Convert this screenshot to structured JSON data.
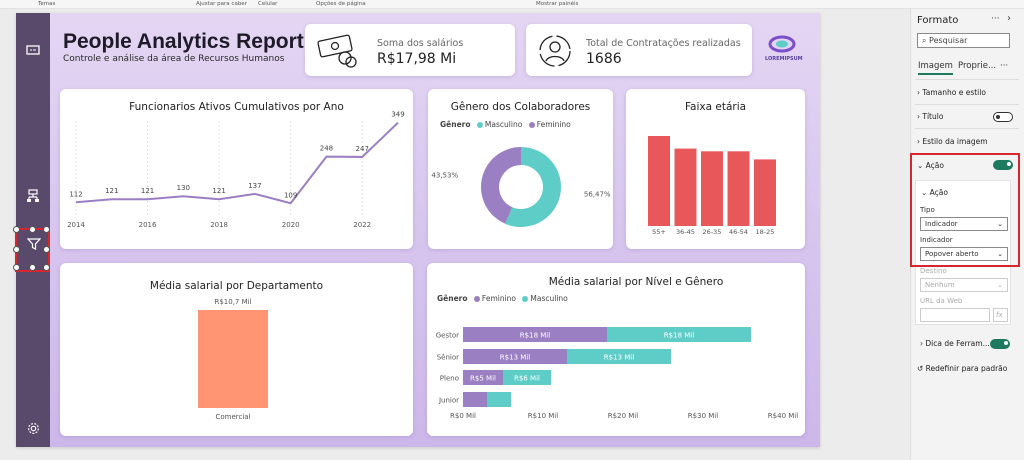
{
  "ribbon": {
    "labels": [
      "Temas",
      "Ajustar para caber",
      "Celular",
      "Opções de página",
      "Mostrar painéis"
    ]
  },
  "report": {
    "title": "People Analytics Report",
    "subtitle": "Controle e análise da área de Recursos Humanos",
    "logo_text": "LOREMIPSUM",
    "kpis": [
      {
        "label": "Soma dos salários",
        "value": "R$17,98 Mi",
        "icon": "money-icon"
      },
      {
        "label": "Total de Contratações realizadas",
        "value": "1686",
        "icon": "recruiter-icon"
      }
    ]
  },
  "nav": {
    "icons": [
      "report-icon",
      "org-chart-icon",
      "filter-icon",
      "settings-icon"
    ]
  },
  "colors": {
    "purple": "#9b7fc3",
    "teal": "#5ecdc8",
    "red": "#e8585a",
    "salmon": "#ff9573",
    "selection": "#d8262f",
    "toggle_on": "#1e7a5f"
  },
  "charts": {
    "line_title": "Funcionarios Ativos Cumulativos por Ano",
    "gender_title": "Gênero dos Colaboradores",
    "age_title": "Faixa etária",
    "dept_title": "Média salarial por Departamento",
    "level_title": "Média salarial por Nível e Gênero",
    "legend_genero": "Gênero",
    "legend_masculino": "Masculino",
    "legend_feminino": "Feminino"
  },
  "chart_data": [
    {
      "type": "line",
      "title": "Funcionarios Ativos Cumulativos por Ano",
      "x": [
        2014,
        2015,
        2016,
        2017,
        2018,
        2019,
        2020,
        2021,
        2022,
        2023
      ],
      "values": [
        112,
        121,
        121,
        130,
        121,
        137,
        109,
        248,
        247,
        349
      ],
      "x_tick_labels": [
        "2014",
        "2016",
        "2018",
        "2020",
        "2022"
      ]
    },
    {
      "type": "pie",
      "title": "Gênero dos Colaboradores",
      "labels": [
        "Masculino",
        "Feminino"
      ],
      "values": [
        56.47,
        43.53
      ],
      "value_labels": [
        "56,47%",
        "43,53%"
      ]
    },
    {
      "type": "bar",
      "title": "Faixa etária",
      "categories": [
        "55+",
        "36-45",
        "26-35",
        "46-54",
        "18-25"
      ],
      "values": [
        100,
        86,
        83,
        83,
        74
      ]
    },
    {
      "type": "bar",
      "title": "Média salarial por Departamento",
      "categories": [
        "Comercial"
      ],
      "values": [
        10.7
      ],
      "value_labels": [
        "R$10,7 Mil"
      ]
    },
    {
      "type": "bar",
      "title": "Média salarial por Nível e Gênero",
      "categories": [
        "Gestor",
        "Sênior",
        "Pleno",
        "Junior"
      ],
      "series": [
        {
          "name": "Feminino",
          "values": [
            18,
            13,
            5,
            3
          ],
          "labels": [
            "R$18 Mil",
            "R$13 Mil",
            "R$5 Mil",
            ""
          ]
        },
        {
          "name": "Masculino",
          "values": [
            18,
            13,
            6,
            3
          ],
          "labels": [
            "R$18 Mil",
            "R$13 Mil",
            "R$6 Mil",
            ""
          ]
        }
      ],
      "x_ticks": [
        0,
        10,
        20,
        30,
        40
      ],
      "x_tick_labels": [
        "R$0 Mil",
        "R$10 Mil",
        "R$20 Mil",
        "R$30 Mil",
        "R$40 Mil"
      ]
    }
  ],
  "format_pane": {
    "title": "Formato",
    "more": "···",
    "chevron": "›",
    "search_placeholder": "Pesquisar",
    "tabs": [
      "Imagem",
      "Proprie...",
      "···"
    ],
    "sections": {
      "tamanho": "Tamanho e estilo",
      "titulo": "Título",
      "estilo": "Estilo da imagem",
      "acao": "Ação",
      "acao_inner": "Ação",
      "dica": "Dica de Ferram..."
    },
    "fields": {
      "tipo_label": "Tipo",
      "tipo_value": "Indicador",
      "indicador_label": "Indicador",
      "indicador_value": "Popover aberto",
      "destino_label": "Destino",
      "destino_value": "Nenhum",
      "url_label": "URL da Web",
      "fx": "fx"
    },
    "reset": "Redefinir para padrão",
    "toggles": {
      "titulo": false,
      "acao": true,
      "dica": true
    }
  }
}
